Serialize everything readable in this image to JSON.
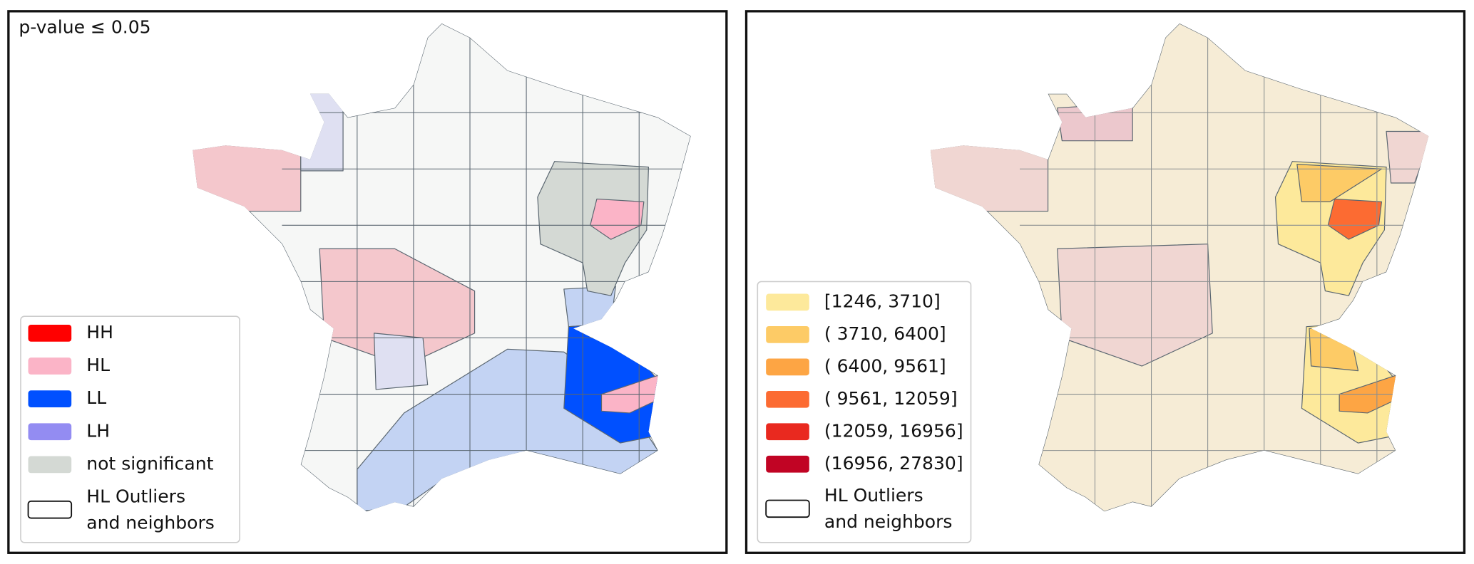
{
  "left_panel": {
    "annotation": "p-value ≤ 0.05",
    "legend": [
      {
        "label": "HH",
        "color": "#ff0000"
      },
      {
        "label": "HL",
        "color": "#fbb4c7"
      },
      {
        "label": "LL",
        "color": "#0050ff"
      },
      {
        "label": "LH",
        "color": "#938cf2"
      },
      {
        "label": "not significant",
        "color": "#d4d9d4"
      }
    ],
    "outline_legend": [
      "HL Outliers",
      "and neighbors"
    ]
  },
  "right_panel": {
    "legend": [
      {
        "label": "[1246,  3710]",
        "color": "#fde99b"
      },
      {
        "label": "( 3710,  6400]",
        "color": "#fdcb66"
      },
      {
        "label": "( 6400,  9561]",
        "color": "#fda544"
      },
      {
        "label": "( 9561, 12059]",
        "color": "#fc6b32"
      },
      {
        "label": "(12059, 16956]",
        "color": "#e9291f"
      },
      {
        "label": "(16956, 27830]",
        "color": "#c10424"
      }
    ],
    "outline_legend": [
      "HL Outliers",
      "and neighbors"
    ]
  }
}
